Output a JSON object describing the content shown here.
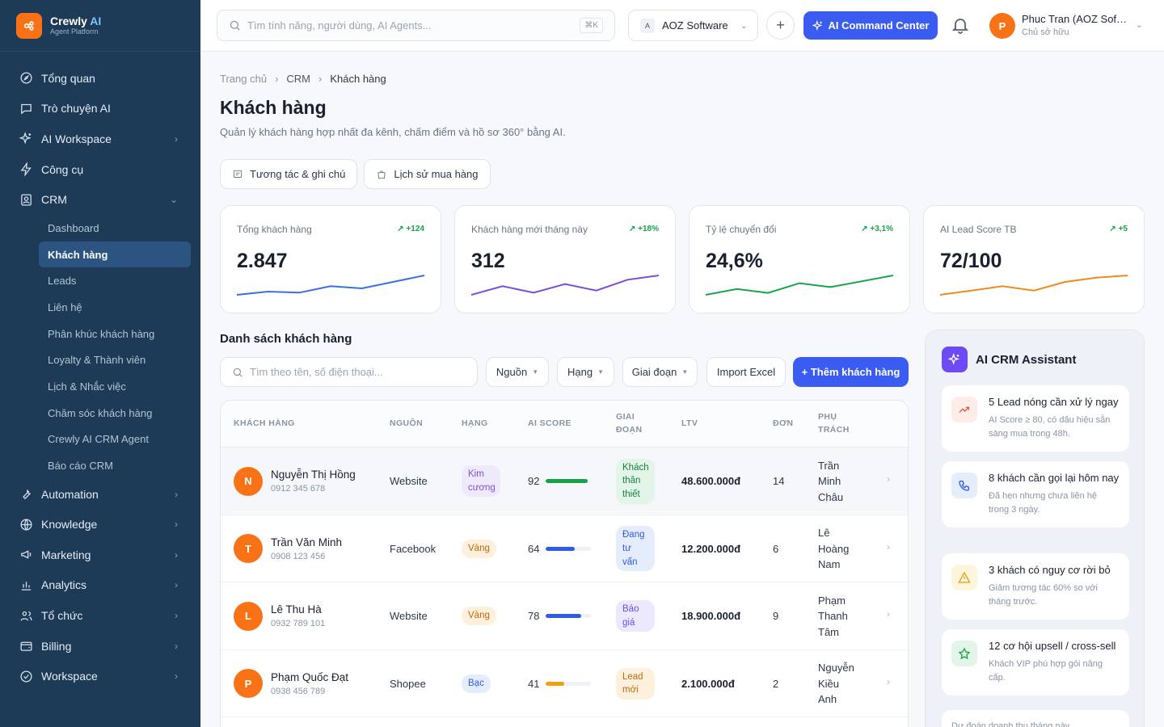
{
  "brand": {
    "name_main": "Crewly",
    "name_accent": "AI",
    "tagline": "Agent Platform"
  },
  "nav": {
    "items_top": [
      {
        "label": "Tổng quan",
        "icon": "home-icon"
      },
      {
        "label": "Trò chuyện AI",
        "icon": "chat-icon"
      },
      {
        "label": "AI Workspace",
        "icon": "sparkle-icon",
        "expandable": true
      },
      {
        "label": "Công cụ",
        "icon": "bolt-icon"
      },
      {
        "label": "CRM",
        "icon": "contacts-icon",
        "expanded": true
      }
    ],
    "crm_sub": [
      "Dashboard",
      "Khách hàng",
      "Leads",
      "Liên hệ",
      "Phân khúc khách hàng",
      "Loyalty & Thành viên",
      "Lịch & Nhắc việc",
      "Chăm sóc khách hàng",
      "Crewly AI CRM Agent",
      "Báo cáo CRM"
    ],
    "crm_active": "Khách hàng",
    "items_bottom": [
      {
        "label": "Automation",
        "icon": "wrench-icon"
      },
      {
        "label": "Knowledge",
        "icon": "globe-icon"
      },
      {
        "label": "Marketing",
        "icon": "megaphone-icon"
      },
      {
        "label": "Analytics",
        "icon": "bar-chart-icon"
      },
      {
        "label": "Tổ chức",
        "icon": "users-icon"
      },
      {
        "label": "Billing",
        "icon": "wallet-icon"
      },
      {
        "label": "Workspace",
        "icon": "compass-icon"
      }
    ]
  },
  "topbar": {
    "search_placeholder": "Tìm tính năng, người dùng, AI Agents...",
    "shortcut": "⌘K",
    "org_badge": "A",
    "org_name": "AOZ Software",
    "ai_button": "AI Command Center",
    "user_initial": "P",
    "user_name": "Phuc Tran (AOZ Software)",
    "user_role": "Chủ sở hữu"
  },
  "page": {
    "breadcrumb": [
      "Trang chủ",
      "CRM",
      "Khách hàng"
    ],
    "title": "Khách hàng",
    "subtitle": "Quản lý khách hàng hợp nhất đa kênh, chấm điểm và hồ sơ 360° bằng AI.",
    "tabs": [
      "Tương tác & ghi chú",
      "Lịch sử mua hàng"
    ]
  },
  "stats": [
    {
      "label": "Tổng khách hàng",
      "delta": "+124",
      "value": "2.847",
      "color": "#3b6fe0",
      "trend": [
        3,
        4.5,
        4,
        7,
        6,
        9,
        12
      ]
    },
    {
      "label": "Khách hàng mới tháng này",
      "delta": "+18%",
      "value": "312",
      "color": "#7c4ddb",
      "trend": [
        3,
        7,
        4,
        8,
        5,
        10,
        12
      ]
    },
    {
      "label": "Tỷ lệ chuyển đổi",
      "delta": "+3,1%",
      "value": "24,6%",
      "color": "#16a34a",
      "trend": [
        3,
        6,
        4,
        9,
        7,
        10,
        13
      ]
    },
    {
      "label": "AI Lead Score TB",
      "delta": "+5",
      "value": "72/100",
      "color": "#f28a1b",
      "trend": [
        3,
        5,
        7,
        5,
        9,
        11,
        12
      ]
    }
  ],
  "list": {
    "title": "Danh sách khách hàng",
    "search_placeholder": "Tìm theo tên, số điện thoại...",
    "filters": [
      "Nguồn",
      "Hạng",
      "Giai đoạn"
    ],
    "import": "Import Excel",
    "add": "+ Thêm khách hàng",
    "headers": [
      "KHÁCH HÀNG",
      "NGUỒN",
      "HẠNG",
      "AI SCORE",
      "GIAI ĐOẠN",
      "LTV",
      "ĐƠN",
      "PHỤ TRÁCH"
    ],
    "rows": [
      {
        "initial": "N",
        "name": "Nguyễn Thị Hồng",
        "phone": "0912 345 678",
        "source": "Website",
        "tier": "Kim cương",
        "tier_color": "#7c4ddb",
        "tier_bg": "#efeafb",
        "score": 92,
        "score_color": "#16a34a",
        "stage": "Khách thân thiết",
        "stage_color": "#15803d",
        "stage_bg": "#e3f5e9",
        "ltv": "48.600.000đ",
        "orders": "14",
        "owner": "Trần Minh Châu"
      },
      {
        "initial": "T",
        "name": "Trần Văn Minh",
        "phone": "0908 123 456",
        "source": "Facebook",
        "tier": "Vàng",
        "tier_color": "#c2680c",
        "tier_bg": "#fdf0dc",
        "score": 64,
        "score_color": "#2e5ce6",
        "stage": "Đang tư vấn",
        "stage_color": "#2e5ce6",
        "stage_bg": "#e5ecfc",
        "ltv": "12.200.000đ",
        "orders": "6",
        "owner": "Lê Hoàng Nam"
      },
      {
        "initial": "L",
        "name": "Lê Thu Hà",
        "phone": "0932 789 101",
        "source": "Website",
        "tier": "Vàng",
        "tier_color": "#c2680c",
        "tier_bg": "#fdf0dc",
        "score": 78,
        "score_color": "#2e5ce6",
        "stage": "Báo giá",
        "stage_color": "#6d4af5",
        "stage_bg": "#ece8fd",
        "ltv": "18.900.000đ",
        "orders": "9",
        "owner": "Phạm Thanh Tâm"
      },
      {
        "initial": "P",
        "name": "Phạm Quốc Đạt",
        "phone": "0938 456 789",
        "source": "Shopee",
        "tier": "Bạc",
        "tier_color": "#2e5ce6",
        "tier_bg": "#e5ecfc",
        "score": 41,
        "score_color": "#f59e0b",
        "stage": "Lead mới",
        "stage_color": "#c2680c",
        "stage_bg": "#fdf0dc",
        "ltv": "2.100.000đ",
        "orders": "2",
        "owner": "Nguyễn Kiều Anh"
      }
    ]
  },
  "assistant": {
    "title": "AI CRM Assistant",
    "cards": [
      {
        "title": "5 Lead nóng cần xử lý ngay",
        "desc": "AI Score ≥ 80, có dấu hiệu sẵn sàng mua trong 48h.",
        "icon": "trend-up-icon",
        "color": "#e8553d",
        "bg": "#fdece8"
      },
      {
        "title": "8 khách cần gọi lại hôm nay",
        "desc": "Đã hẹn nhưng chưa liên hệ trong 3 ngày.",
        "icon": "phone-icon",
        "color": "#2e5ce6",
        "bg": "#e5ecfc"
      },
      {
        "title": "3 khách có nguy cơ rời bỏ",
        "desc": "Giảm tương tác 60% so với tháng trước.",
        "icon": "warning-icon",
        "color": "#e0a21a",
        "bg": "#fdf5dc"
      },
      {
        "title": "12 cơ hội upsell / cross-sell",
        "desc": "Khách VIP phù hợp gói nâng cấp.",
        "icon": "star-icon",
        "color": "#16a34a",
        "bg": "#e3f5e9"
      }
    ],
    "footer_cut": "Dự đoán doanh thu tháng này"
  }
}
